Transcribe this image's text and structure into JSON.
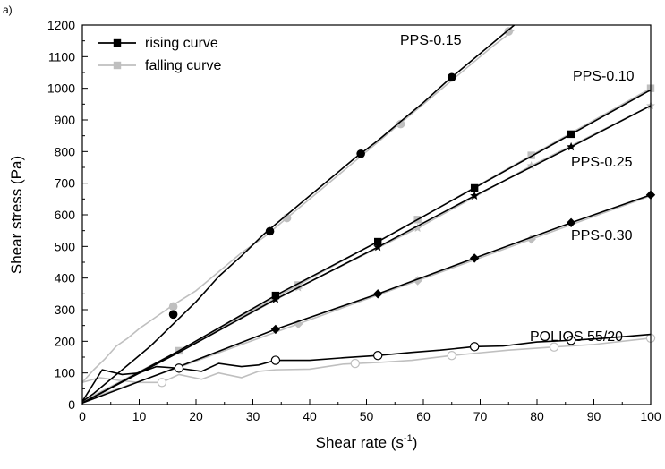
{
  "chart_data": {
    "type": "line",
    "panel_label": "a)",
    "xlabel": "Shear rate (s",
    "xlabel_sup": "-1",
    "xlabel_tail": ")",
    "ylabel": "Shear stress (Pa)",
    "xlim": [
      0,
      100
    ],
    "ylim": [
      0,
      1200
    ],
    "x_ticks": [
      "0",
      "10",
      "20",
      "30",
      "40",
      "50",
      "60",
      "70",
      "80",
      "90",
      "100"
    ],
    "y_ticks": [
      "0",
      "100",
      "200",
      "300",
      "400",
      "500",
      "600",
      "700",
      "800",
      "900",
      "1000",
      "1100",
      "1200"
    ],
    "grid": false,
    "legend": {
      "position": "top-left",
      "entries": [
        {
          "label": "rising curve",
          "color": "#000000",
          "marker": "square"
        },
        {
          "label": "falling curve",
          "color": "#bfbfbf",
          "marker": "square"
        }
      ]
    },
    "series_labels": [
      "PPS-0.15",
      "PPS-0.10",
      "PPS-0.25",
      "PPS-0.30",
      "POLIOS 55/20"
    ],
    "series": [
      {
        "group": 0,
        "curve": "rising",
        "color": "#000000",
        "marker": "circle-filled",
        "x": [
          0,
          2,
          4,
          6,
          8,
          10,
          12,
          14,
          16,
          20,
          24,
          28,
          32,
          36,
          40,
          44,
          48,
          52,
          56,
          60,
          64,
          68,
          72,
          76
        ],
        "y": [
          10,
          35,
          65,
          95,
          125,
          155,
          185,
          220,
          255,
          325,
          405,
          470,
          540,
          600,
          660,
          720,
          780,
          835,
          895,
          955,
          1020,
          1080,
          1140,
          1200
        ],
        "marker_x": [
          16,
          33,
          49,
          65
        ],
        "marker_y": [
          285,
          548,
          793,
          1035
        ]
      },
      {
        "group": 0,
        "curve": "falling",
        "color": "#bfbfbf",
        "marker": "circle-filled",
        "x": [
          0,
          2,
          4,
          6,
          8,
          10,
          12,
          14,
          16,
          20,
          24,
          28,
          32,
          36,
          40,
          44,
          48,
          52,
          56,
          60,
          64,
          68,
          72,
          76
        ],
        "y": [
          70,
          110,
          145,
          185,
          210,
          240,
          265,
          290,
          315,
          360,
          420,
          480,
          530,
          590,
          650,
          710,
          770,
          830,
          890,
          950,
          1010,
          1070,
          1130,
          1185
        ],
        "marker_x": [
          16,
          36,
          56,
          75
        ],
        "marker_y": [
          310,
          590,
          887,
          1180
        ]
      },
      {
        "group": 1,
        "curve": "rising",
        "color": "#000000",
        "marker": "square",
        "x": [
          0,
          17,
          34,
          52,
          69,
          86,
          100
        ],
        "y": [
          5,
          170,
          345,
          515,
          685,
          855,
          995
        ],
        "marker_x": [
          34,
          52,
          69,
          86
        ],
        "marker_y": [
          345,
          515,
          685,
          855
        ]
      },
      {
        "group": 1,
        "curve": "falling",
        "color": "#bfbfbf",
        "marker": "square",
        "x": [
          0,
          17,
          38,
          59,
          79,
          100
        ],
        "y": [
          10,
          170,
          378,
          585,
          788,
          1000
        ],
        "marker_x": [
          17,
          38,
          59,
          79,
          100
        ],
        "marker_y": [
          170,
          378,
          585,
          788,
          1000
        ]
      },
      {
        "group": 2,
        "curve": "rising",
        "color": "#000000",
        "marker": "star",
        "x": [
          0,
          17,
          34,
          52,
          69,
          86,
          100
        ],
        "y": [
          5,
          165,
          333,
          498,
          660,
          815,
          945
        ],
        "marker_x": [
          34,
          52,
          69,
          86
        ],
        "marker_y": [
          333,
          498,
          660,
          815
        ]
      },
      {
        "group": 2,
        "curve": "falling",
        "color": "#bfbfbf",
        "marker": "star",
        "x": [
          0,
          17,
          38,
          59,
          79,
          100
        ],
        "y": [
          10,
          165,
          370,
          558,
          755,
          945
        ],
        "marker_x": [
          38,
          59,
          79,
          100
        ],
        "marker_y": [
          370,
          558,
          755,
          945
        ]
      },
      {
        "group": 3,
        "curve": "rising",
        "color": "#000000",
        "marker": "diamond",
        "x": [
          0,
          17,
          34,
          52,
          69,
          86,
          100
        ],
        "y": [
          5,
          120,
          238,
          350,
          463,
          575,
          663
        ],
        "marker_x": [
          34,
          52,
          69,
          86,
          100
        ],
        "marker_y": [
          238,
          350,
          463,
          575,
          663
        ]
      },
      {
        "group": 3,
        "curve": "falling",
        "color": "#bfbfbf",
        "marker": "diamond",
        "x": [
          0,
          17,
          38,
          59,
          79,
          100
        ],
        "y": [
          10,
          118,
          255,
          392,
          523,
          660
        ],
        "marker_x": [
          38,
          59,
          79
        ],
        "marker_y": [
          255,
          392,
          523
        ]
      },
      {
        "group": 4,
        "curve": "rising",
        "color": "#000000",
        "marker": "circle-open",
        "x": [
          0,
          3.5,
          7,
          10,
          13,
          17,
          21,
          24,
          28,
          31,
          34,
          40,
          46,
          52,
          58,
          63,
          69,
          74,
          80,
          86,
          92,
          100
        ],
        "y": [
          10,
          110,
          95,
          100,
          120,
          115,
          105,
          130,
          120,
          125,
          140,
          140,
          148,
          155,
          165,
          172,
          183,
          185,
          198,
          203,
          210,
          222
        ],
        "marker_x": [
          17,
          34,
          52,
          69,
          86
        ],
        "marker_y": [
          115,
          140,
          155,
          183,
          203
        ]
      },
      {
        "group": 4,
        "curve": "falling",
        "color": "#bfbfbf",
        "marker": "circle-open",
        "x": [
          0,
          3,
          7,
          10,
          14,
          17,
          21,
          24,
          28,
          31,
          34,
          40,
          46,
          52,
          58,
          65,
          69,
          75,
          83,
          90,
          100
        ],
        "y": [
          70,
          85,
          75,
          70,
          70,
          95,
          80,
          100,
          85,
          105,
          110,
          112,
          128,
          133,
          140,
          155,
          162,
          172,
          182,
          190,
          210
        ],
        "marker_x": [
          14,
          48,
          65,
          83,
          100
        ],
        "marker_y": [
          70,
          130,
          155,
          182,
          210
        ]
      }
    ]
  }
}
